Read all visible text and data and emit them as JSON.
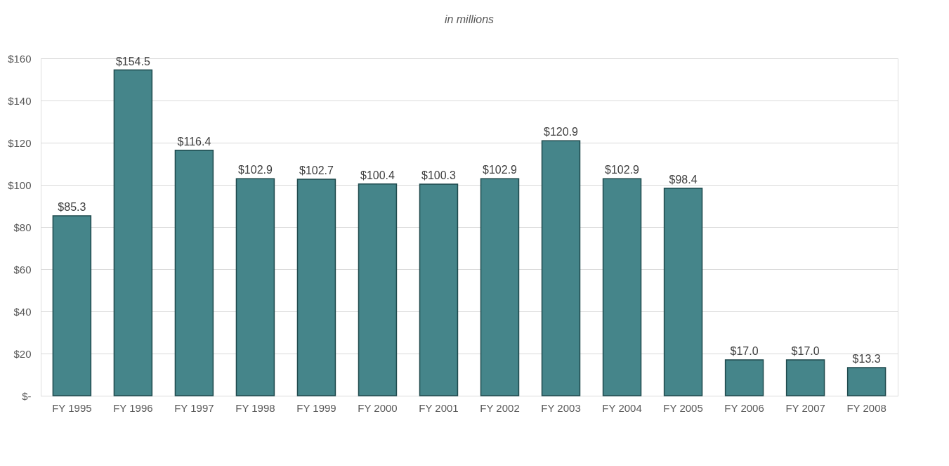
{
  "chart_data": {
    "type": "bar",
    "title": "in millions",
    "categories": [
      "FY 1995",
      "FY 1996",
      "FY 1997",
      "FY 1998",
      "FY 1999",
      "FY 2000",
      "FY 2001",
      "FY 2002",
      "FY 2003",
      "FY 2004",
      "FY 2005",
      "FY 2006",
      "FY 2007",
      "FY 2008"
    ],
    "values": [
      85.3,
      154.5,
      116.4,
      102.9,
      102.7,
      100.4,
      100.3,
      102.9,
      120.9,
      102.9,
      98.4,
      17.0,
      17.0,
      13.3
    ],
    "value_labels": [
      "$85.3",
      "$154.5",
      "$116.4",
      "$102.9",
      "$102.7",
      "$100.4",
      "$100.3",
      "$102.9",
      "$120.9",
      "$102.9",
      "$98.4",
      "$17.0",
      "$17.0",
      "$13.3"
    ],
    "color": "#45858a",
    "ylim": [
      0,
      160
    ],
    "yticks": [
      {
        "value": 0,
        "label": "$-"
      },
      {
        "value": 20,
        "label": "$20"
      },
      {
        "value": 40,
        "label": "$40"
      },
      {
        "value": 60,
        "label": "$60"
      },
      {
        "value": 80,
        "label": "$80"
      },
      {
        "value": 100,
        "label": "$100"
      },
      {
        "value": 120,
        "label": "$120"
      },
      {
        "value": 140,
        "label": "$140"
      },
      {
        "value": 160,
        "label": "$160"
      }
    ],
    "grid": "y"
  }
}
